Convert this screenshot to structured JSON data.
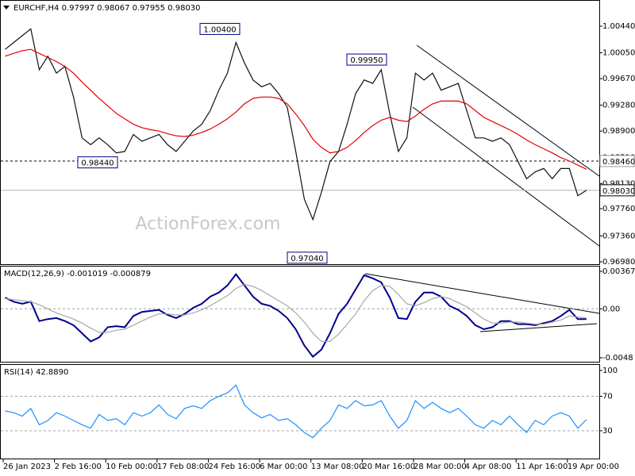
{
  "chart_data": [
    {
      "type": "line",
      "title": "EURCHF,H4 0.97997 0.98067 0.97955 0.98030",
      "watermark": "ActionForex.com",
      "ylim": [
        0.96945,
        1.00813
      ],
      "yticks": [
        {
          "value": 1.0044,
          "label": "1.00440"
        },
        {
          "value": 1.0005,
          "label": "1.00050"
        },
        {
          "value": 0.9967,
          "label": "0.99670"
        },
        {
          "value": 0.9928,
          "label": "0.99280"
        },
        {
          "value": 0.989,
          "label": "0.98900"
        },
        {
          "value": 0.9851,
          "label": "0.98510"
        },
        {
          "value": 0.9813,
          "label": "0.98130"
        },
        {
          "value": 0.9776,
          "label": "0.97760"
        },
        {
          "value": 0.9736,
          "label": "0.97360"
        },
        {
          "value": 0.9698,
          "label": "0.96980"
        }
      ],
      "series": [
        {
          "color": "#111111",
          "values": [
            1.001,
            1.002,
            1.003,
            1.004,
            0.998,
            1.0,
            0.9975,
            0.9985,
            0.994,
            0.988,
            0.987,
            0.988,
            0.987,
            0.9858,
            0.986,
            0.9885,
            0.9875,
            0.988,
            0.9885,
            0.987,
            0.986,
            0.9875,
            0.989,
            0.99,
            0.992,
            0.995,
            0.9975,
            1.002,
            0.999,
            0.9965,
            0.9955,
            0.996,
            0.9945,
            0.9925,
            0.986,
            0.979,
            0.976,
            0.98,
            0.9845,
            0.986,
            0.99,
            0.9945,
            0.9965,
            0.996,
            0.998,
            0.9915,
            0.986,
            0.988,
            0.9975,
            0.9965,
            0.9975,
            0.995,
            0.9955,
            0.996,
            0.992,
            0.988,
            0.988,
            0.9875,
            0.988,
            0.987,
            0.9845,
            0.982,
            0.983,
            0.9835,
            0.982,
            0.9835,
            0.9835,
            0.9795,
            0.9803
          ]
        },
        {
          "color": "#e00000",
          "values": [
            1.0,
            1.0004,
            1.0008,
            1.001,
            1.0004,
            0.9998,
            0.9992,
            0.9985,
            0.9975,
            0.9962,
            0.995,
            0.9938,
            0.9927,
            0.9916,
            0.9908,
            0.99,
            0.9895,
            0.9892,
            0.989,
            0.9886,
            0.9883,
            0.9882,
            0.9884,
            0.9888,
            0.9893,
            0.99,
            0.9908,
            0.9918,
            0.993,
            0.9938,
            0.994,
            0.994,
            0.9938,
            0.993,
            0.9915,
            0.9898,
            0.9878,
            0.9866,
            0.9858,
            0.986,
            0.9866,
            0.9876,
            0.9888,
            0.9898,
            0.9906,
            0.991,
            0.9906,
            0.9904,
            0.9912,
            0.9922,
            0.993,
            0.9934,
            0.9934,
            0.9934,
            0.993,
            0.992,
            0.991,
            0.9904,
            0.9898,
            0.9892,
            0.9885,
            0.9877,
            0.987,
            0.9864,
            0.9858,
            0.9851,
            0.9846,
            0.984,
            0.9834
          ]
        }
      ],
      "annotations": [
        {
          "value": 1.004,
          "label": "1.00400"
        },
        {
          "value": 0.9995,
          "label": "0.99950"
        },
        {
          "value": 0.9844,
          "label": "0.98440"
        },
        {
          "value": 0.9704,
          "label": "0.97040"
        }
      ],
      "hlines": [
        {
          "value": 0.9846,
          "label": "0.98460",
          "style": "dashed"
        },
        {
          "value": 0.9803,
          "label": "0.98030",
          "style": "solid"
        }
      ]
    },
    {
      "type": "line",
      "title": "MACD(12,26,9) -0.001019 -0.000879",
      "ylim": [
        -0.00527,
        0.00415
      ],
      "yticks": [
        0.003679,
        {
          "value": 0,
          "label": "0.00"
        },
        -0.0048
      ],
      "levels": [
        0
      ],
      "series": [
        {
          "color": "#00008b",
          "values": [
            0.0011,
            0.0007,
            0.0005,
            0.0007,
            -0.0012,
            -0.001,
            -0.0009,
            -0.0012,
            -0.0016,
            -0.0024,
            -0.0032,
            -0.0028,
            -0.0018,
            -0.0017,
            -0.0018,
            -0.0007,
            -0.0003,
            -0.0002,
            -0.0001,
            -0.0006,
            -0.0009,
            -0.0005,
            0.0001,
            0.0005,
            0.0012,
            0.0016,
            0.0023,
            0.0034,
            0.0023,
            0.0012,
            0.0005,
            0.0003,
            -0.0002,
            -0.0009,
            -0.002,
            -0.0036,
            -0.0047,
            -0.004,
            -0.0024,
            -0.0005,
            0.0005,
            0.0019,
            0.0033,
            0.003,
            0.0026,
            0.0011,
            -0.0009,
            -0.001,
            0.0007,
            0.0016,
            0.0016,
            0.0012,
            0.0003,
            -0.0001,
            -0.0007,
            -0.0016,
            -0.002,
            -0.0018,
            -0.0012,
            -0.0012,
            -0.0015,
            -0.0015,
            -0.0016,
            -0.0014,
            -0.0012,
            -0.0007,
            -0.0001,
            -0.001,
            -0.001
          ]
        },
        {
          "color": "#a8a8a8",
          "values": [
            0.001,
            0.0009,
            0.0008,
            0.0007,
            0.0004,
            0.0,
            -0.0004,
            -0.0007,
            -0.001,
            -0.0014,
            -0.0019,
            -0.0023,
            -0.0023,
            -0.0021,
            -0.002,
            -0.0016,
            -0.0012,
            -0.0008,
            -0.0005,
            -0.0005,
            -0.0006,
            -0.0006,
            -0.0004,
            -0.0001,
            0.0003,
            0.0008,
            0.0013,
            0.002,
            0.0024,
            0.0022,
            0.0018,
            0.0013,
            0.0008,
            0.0003,
            -0.0004,
            -0.0013,
            -0.0024,
            -0.0032,
            -0.0032,
            -0.0025,
            -0.0015,
            -0.0005,
            0.0008,
            0.0018,
            0.0023,
            0.0022,
            0.0014,
            0.0005,
            0.0003,
            0.0006,
            0.001,
            0.0012,
            0.001,
            0.0006,
            0.0002,
            -0.0004,
            -0.001,
            -0.0014,
            -0.0014,
            -0.0013,
            -0.0013,
            -0.0014,
            -0.0015,
            -0.0015,
            -0.0013,
            -0.0011,
            -0.0007,
            -0.0008,
            -0.0009
          ]
        }
      ]
    },
    {
      "type": "line",
      "title": "RSI(14) 42.8890",
      "ylim": [
        -2.2,
        106.4
      ],
      "yticks": [
        100,
        70,
        30
      ],
      "levels": [
        70,
        30
      ],
      "categories": [
        null,
        null,
        "26 Jan 2023",
        null,
        null,
        null,
        null,
        null,
        "2 Feb 16:00",
        null,
        null,
        null,
        null,
        null,
        "10 Feb 00:00",
        null,
        null,
        null,
        null,
        null,
        "17 Feb 08:00",
        null,
        null,
        null,
        null,
        null,
        "24 Feb 16:00",
        null,
        null,
        null,
        null,
        null,
        "6 Mar 00:00",
        null,
        null,
        null,
        null,
        null,
        "13 Mar 08:00",
        null,
        null,
        null,
        null,
        null,
        "20 Mar 16:00",
        null,
        null,
        null,
        null,
        null,
        "28 Mar 00:00",
        null,
        null,
        null,
        null,
        null,
        "4 Apr 08:00",
        null,
        null,
        null,
        null,
        null,
        "11 Apr 16:00",
        null,
        null,
        null,
        null,
        null,
        "19 Apr 00:00"
      ],
      "series": [
        {
          "color": "#1e90ff",
          "values": [
            53,
            51,
            47,
            56,
            37,
            42,
            51,
            47,
            42,
            37,
            33,
            49,
            42,
            44,
            37,
            51,
            47,
            51,
            60,
            49,
            44,
            56,
            59,
            56,
            65,
            70,
            74,
            83,
            60,
            51,
            45,
            49,
            42,
            44,
            37,
            28,
            22,
            33,
            42,
            60,
            56,
            65,
            59,
            60,
            65,
            47,
            33,
            42,
            65,
            56,
            63,
            56,
            51,
            56,
            47,
            37,
            33,
            42,
            37,
            47,
            37,
            28,
            42,
            37,
            47,
            51,
            47,
            33,
            43
          ]
        }
      ]
    }
  ]
}
